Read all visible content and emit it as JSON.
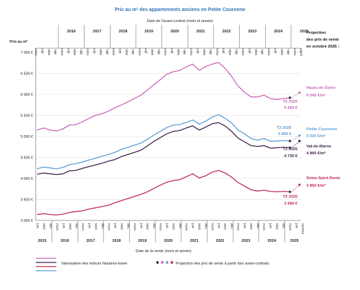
{
  "chart_data": {
    "type": "line",
    "title": "Prix au m² des appartements anciens en Petite Couronne",
    "subtitle": "Date de l'avant-contrat (mois et année)",
    "xlabel": "Date de la vente (mois et année)",
    "ylabel": "Prix au m²",
    "projection_header": [
      "Projection",
      "des prix de vente",
      "en octobre 2025 :"
    ],
    "ylim": [
      3000,
      7000
    ],
    "yticks": [
      "3 000 €",
      "3 500 €",
      "4 000 €",
      "4 500 €",
      "5 000 €",
      "5 500 €",
      "6 000 €",
      "6 500 €",
      "7 000 €"
    ],
    "top_axis": {
      "months": [
        "mars",
        "juin",
        "sept.",
        "déc.",
        "mars",
        "juin",
        "sept.",
        "déc.",
        "mars",
        "juin",
        "sept.",
        "déc.",
        "mars",
        "juin",
        "sept.",
        "déc.",
        "mars",
        "juin",
        "sept.",
        "déc.",
        "mars",
        "juin",
        "sept.",
        "déc.",
        "mars",
        "juin",
        "sept.",
        "déc.",
        "mars",
        "juin",
        "sept.",
        "déc.",
        "mars",
        "juin",
        "sept.",
        "déc.",
        "mars",
        "juin",
        "sept.",
        "déc.",
        "mars",
        "juillet"
      ],
      "years": [
        "2016",
        "2017",
        "2018",
        "2019",
        "2020",
        "2021",
        "2022",
        "2023",
        "2024",
        "2025"
      ]
    },
    "bottom_axis": {
      "months": [
        "juin",
        "sept.",
        "déc.",
        "mars",
        "juin",
        "sept.",
        "déc.",
        "mars",
        "juin",
        "sept.",
        "déc.",
        "mars",
        "juin",
        "sept.",
        "déc.",
        "mars",
        "juin",
        "sept.",
        "déc.",
        "mars",
        "juin",
        "sept.",
        "déc.",
        "mars",
        "juin",
        "sept.",
        "déc.",
        "mars",
        "juin",
        "sept.",
        "déc.",
        "mars",
        "juin",
        "sept.",
        "déc.",
        "mars",
        "juin",
        "sept.",
        "déc.",
        "mars",
        "juin",
        "octobre"
      ],
      "years": [
        "2015",
        "2016",
        "2017",
        "2018",
        "2019",
        "2020",
        "2021",
        "2022",
        "2023",
        "2024",
        "2025"
      ]
    },
    "series": [
      {
        "name": "Hauts-de-Seine",
        "color": "#c964b5",
        "values": [
          5150,
          5200,
          5150,
          5130,
          5180,
          5270,
          5280,
          5350,
          5430,
          5500,
          5540,
          5600,
          5680,
          5750,
          5820,
          5900,
          5980,
          6100,
          6230,
          6350,
          6480,
          6540,
          6570,
          6650,
          6720,
          6570,
          6660,
          6720,
          6760,
          6620,
          6430,
          6200,
          6050,
          5940,
          5940,
          5980,
          5900,
          5880,
          5900,
          5920
        ],
        "projection": 6040
      },
      {
        "name": "Petite Couronne",
        "color": "#5b9bd5",
        "values": [
          4230,
          4270,
          4250,
          4230,
          4260,
          4330,
          4350,
          4390,
          4440,
          4480,
          4530,
          4570,
          4620,
          4690,
          4740,
          4790,
          4840,
          4930,
          5030,
          5120,
          5210,
          5270,
          5280,
          5330,
          5390,
          5290,
          5360,
          5460,
          5520,
          5430,
          5320,
          5150,
          5060,
          4950,
          4910,
          4950,
          4880,
          4890,
          4900,
          4890
        ],
        "projection": 5020
      },
      {
        "name": "Val-de-Marne",
        "color": "#3b1f4a",
        "values": [
          4100,
          4130,
          4110,
          4090,
          4110,
          4180,
          4190,
          4240,
          4280,
          4320,
          4360,
          4410,
          4450,
          4520,
          4570,
          4620,
          4670,
          4770,
          4880,
          4970,
          5060,
          5120,
          5140,
          5200,
          5250,
          5150,
          5220,
          5300,
          5330,
          5250,
          5120,
          4960,
          4870,
          4780,
          4760,
          4780,
          4720,
          4730,
          4740,
          4730
        ],
        "projection": 4890
      },
      {
        "name": "Seine-Saint-Denis",
        "color": "#c0294f",
        "values": [
          3140,
          3160,
          3140,
          3130,
          3150,
          3190,
          3210,
          3230,
          3270,
          3300,
          3330,
          3360,
          3420,
          3470,
          3520,
          3570,
          3620,
          3680,
          3760,
          3840,
          3910,
          3950,
          3970,
          4040,
          4110,
          4010,
          4060,
          4150,
          4190,
          4130,
          4030,
          3900,
          3820,
          3730,
          3700,
          3720,
          3690,
          3680,
          3690,
          3680
        ],
        "projection": 3850
      }
    ],
    "labels": {
      "hds_name": "Hauts-de-Seine",
      "hds_val": "6 040 €/m²",
      "hds_t2": "T2 2025",
      "hds_t2_val": "5 920 €",
      "pc_t2": "T2 2025",
      "pc_t2_val": "4 890 €",
      "pc_name": "Petite Couronne",
      "pc_val": "5 020 €/m²",
      "vdm_name": "Val-de-Marne",
      "vdm_val": "4 890 €/m²",
      "vdm_t2": "T2 2025",
      "vdm_t2_val": "4 730 €",
      "ssd_name": "Seine-Saint-Denis",
      "ssd_val": "3 850 €/m²",
      "ssd_t2": "T2 2025",
      "ssd_t2_val": "3 680 €"
    },
    "legend": {
      "valorisation": "Valorisation des indices Notaires-Insee",
      "projection": "Projection des prix de vente à partir des avant-contrats"
    }
  }
}
